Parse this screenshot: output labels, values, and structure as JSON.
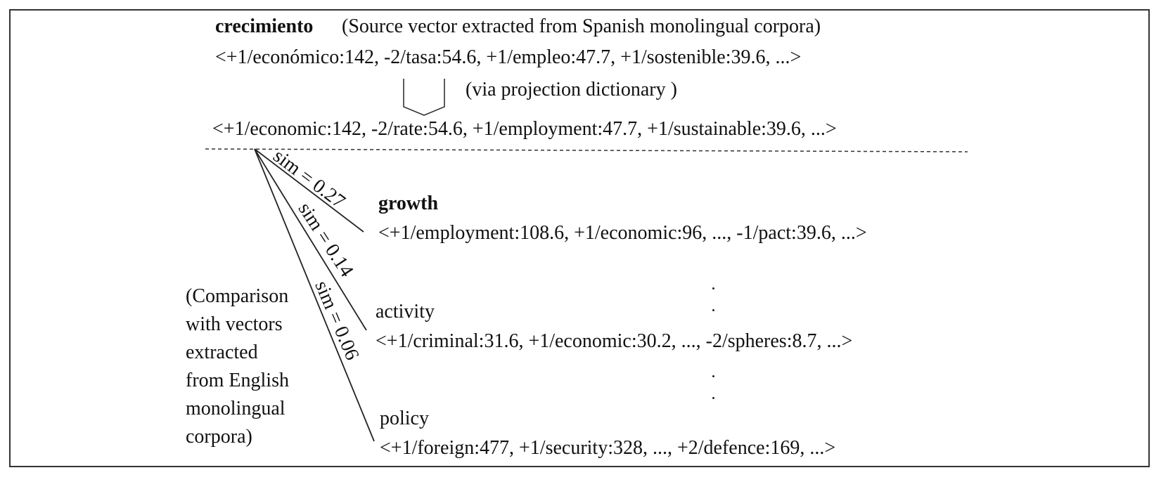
{
  "source": {
    "word": "crecimiento",
    "note": "(Source vector  extracted from Spanish monolingual corpora)",
    "vector": "<+1/económico:142, -2/tasa:54.6, +1/empleo:47.7, +1/sostenible:39.6, ...>"
  },
  "projection": {
    "label": "(via projection dictionary )",
    "vector": "<+1/economic:142, -2/rate:54.6, +1/employment:47.7, +1/sustainable:39.6, ...>"
  },
  "comparison_note": [
    "(Comparison",
    "with vectors",
    "extracted",
    "from English",
    "monolingual",
    "corpora)"
  ],
  "targets": [
    {
      "word": "growth",
      "vector": "<+1/employment:108.6, +1/economic:96, ..., -1/pact:39.6, ...>",
      "sim": "sim = 0.27"
    },
    {
      "word": "activity",
      "vector": "<+1/criminal:31.6, +1/economic:30.2,  ..., -2/spheres:8.7, ...>",
      "sim": "sim = 0.14"
    },
    {
      "word": "policy",
      "vector": "<+1/foreign:477, +1/security:328, ..., +2/defence:169,  ...>",
      "sim": "sim = 0.06"
    }
  ]
}
